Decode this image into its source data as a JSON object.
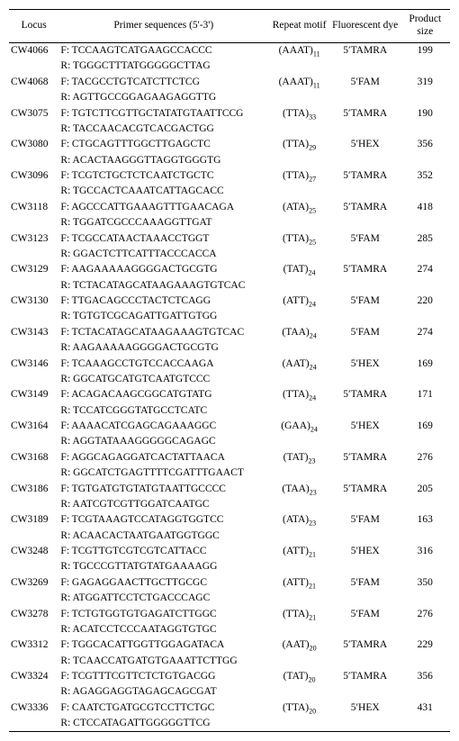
{
  "headers": {
    "locus": "Locus",
    "primer": "Primer sequences (5'-3')",
    "motif": "Repeat motif",
    "dye": "Fluorescent dye",
    "size": "Product size"
  },
  "dyePrefix": "5′",
  "rows": [
    {
      "locus": "CW4066",
      "f": "TCCAAGTCATGAAGCCACCC",
      "r": "TGGGCTTTATGGGGGCTTAG",
      "motifBase": "(AAAT)",
      "motifSub": "11",
      "dye": "TAMRA",
      "size": "199"
    },
    {
      "locus": "CW4068",
      "f": "TACGCCTGTCATCTTCTCG",
      "r": "AGTTGCCGGAGAAGAGGTTG",
      "motifBase": "(AAAT)",
      "motifSub": "11",
      "dye": "FAM",
      "size": "319"
    },
    {
      "locus": "CW3075",
      "f": "TGTCTTCGTTGCTATATGTAATTCCG",
      "r": "TACCAACACGTCACGACTGG",
      "motifBase": "(TTA)",
      "motifSub": "33",
      "dye": "TAMRA",
      "size": "190"
    },
    {
      "locus": "CW3080",
      "f": "CTGCAGTTTGGCTTGAGCTC",
      "r": "ACACTAAGGGTTAGGTGGGTG",
      "motifBase": "(TTA)",
      "motifSub": "29",
      "dye": "HEX",
      "size": "356"
    },
    {
      "locus": "CW3096",
      "f": "TCGTCTGCTCTCAATCTGCTC",
      "r": "TGCCACTCAAATCATTAGCACC",
      "motifBase": "(TTA)",
      "motifSub": "27",
      "dye": "TAMRA",
      "size": "352"
    },
    {
      "locus": "CW3118",
      "f": "AGCCCATTGAAAGTTTGAACAGA",
      "r": "TGGATCGCCCAAAGGTTGAT",
      "motifBase": "(ATA)",
      "motifSub": "25",
      "dye": "TAMRA",
      "size": "418"
    },
    {
      "locus": "CW3123",
      "f": "TCGCCATAACTAAACCTGGT",
      "r": "GGACTCTTCATTTACCCACCA",
      "motifBase": "(TTA)",
      "motifSub": "25",
      "dye": "FAM",
      "size": "285"
    },
    {
      "locus": "CW3129",
      "f": "AAGAAAAAGGGGACTGCGTG",
      "r": "TCTACATAGCATAAGAAAGTGTCAC",
      "motifBase": "(TAT)",
      "motifSub": "24",
      "dye": "TAMRA",
      "size": "274"
    },
    {
      "locus": "CW3130",
      "f": "TTGACAGCCCTACTCTCAGG",
      "r": "TGTGTCGCAGATTGATTGTGG",
      "motifBase": "(ATT)",
      "motifSub": "24",
      "dye": "FAM",
      "size": "220"
    },
    {
      "locus": "CW3143",
      "f": "TCTACATAGCATAAGAAAGTGTCAC",
      "r": "AAGAAAAAGGGGACTGCGTG",
      "motifBase": "(TAA)",
      "motifSub": "24",
      "dye": "FAM",
      "size": "274"
    },
    {
      "locus": "CW3146",
      "f": "TCAAAGCCTGTCCACCAAGA",
      "r": "GGCATGCATGTCAATGTCCC",
      "motifBase": "(AAT)",
      "motifSub": "24",
      "dye": "HEX",
      "size": "169"
    },
    {
      "locus": "CW3149",
      "f": "ACAGACAAGCGGCATGTATG",
      "r": "TCCATCGGGTATGCCTCATC",
      "motifBase": "(TTA)",
      "motifSub": "24",
      "dye": "TAMRA",
      "size": "171"
    },
    {
      "locus": "CW3164",
      "f": "AAAACATCGAGCAGAAAGGC",
      "r": "AGGTATAAAGGGGGCAGAGC",
      "motifBase": "(GAA)",
      "motifSub": "24",
      "dye": "HEX",
      "size": "169"
    },
    {
      "locus": "CW3168",
      "f": "AGGCAGAGGATCACTATTAACA",
      "r": "GGCATCTGAGTTTTCGATTTGAACT",
      "motifBase": "(TAT)",
      "motifSub": "23",
      "dye": "TAMRA",
      "size": "276"
    },
    {
      "locus": "CW3186",
      "f": "TGTGATGTGTATGTAATTGCCCC",
      "r": "AATCGTCGTTGGATCAATGC",
      "motifBase": "(TAA)",
      "motifSub": "23",
      "dye": "TAMRA",
      "size": "205"
    },
    {
      "locus": "CW3189",
      "f": "TCGTAAAGTCCATAGGTGGTCC",
      "r": "ACAACACTAATGAATGGTGGC",
      "motifBase": "(ATA)",
      "motifSub": "23",
      "dye": "FAM",
      "size": "163"
    },
    {
      "locus": "CW3248",
      "f": "TCGTTGTCGTCGTCATTACC",
      "r": "TGCCCGTTATGTATGAAAAGG",
      "motifBase": "(ATT)",
      "motifSub": "21",
      "dye": "HEX",
      "size": "316"
    },
    {
      "locus": "CW3269",
      "f": "GAGAGGAACTTGCTTGCGC",
      "r": "ATGGATTCCTCTGACCCAGC",
      "motifBase": "(ATT)",
      "motifSub": "21",
      "dye": "FAM",
      "size": "350"
    },
    {
      "locus": "CW3278",
      "f": "TCTGTGGTGTGAGATCTTGGC",
      "r": "ACATCCTCCCAATAGGTGTGC",
      "motifBase": "(TTA)",
      "motifSub": "21",
      "dye": "FAM",
      "size": "276"
    },
    {
      "locus": "CW3312",
      "f": "TGGCACATTGGTTGGAGATACA",
      "r": "TCAACCATGATGTGAAATTCTTGG",
      "motifBase": "(AAT)",
      "motifSub": "20",
      "dye": "TAMRA",
      "size": "229"
    },
    {
      "locus": "CW3324",
      "f": "TCGTTTCGTTCTCTGTGACGG",
      "r": "AGAGGAGGTAGAGCAGCGAT",
      "motifBase": "(TAT)",
      "motifSub": "20",
      "dye": "TAMRA",
      "size": "356"
    },
    {
      "locus": "CW3336",
      "f": "CAATCTGATGCGTCCTTCTGC",
      "r": "CTCCATAGATTGGGGGTTCG",
      "motifBase": "(TTA)",
      "motifSub": "20",
      "dye": "HEX",
      "size": "431"
    }
  ]
}
